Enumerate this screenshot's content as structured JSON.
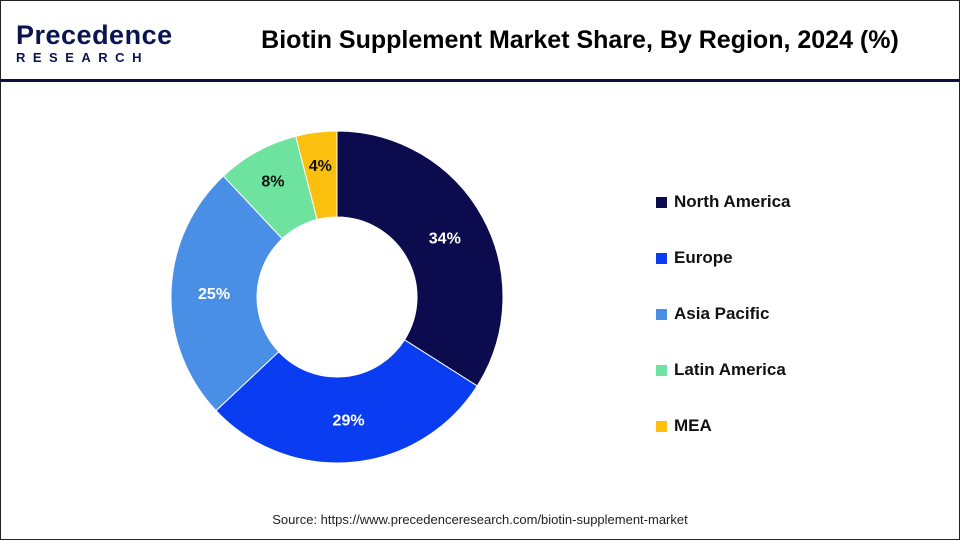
{
  "header": {
    "logo_top": "Precedence",
    "logo_bottom": "RESEARCH",
    "title": "Biotin Supplement Market Share, By Region, 2024 (%)"
  },
  "chart_data": {
    "type": "pie",
    "subtype": "donut",
    "title": "Biotin Supplement Market Share, By Region, 2024 (%)",
    "categories": [
      "North America",
      "Europe",
      "Asia Pacific",
      "Latin America",
      "MEA"
    ],
    "values": [
      34,
      29,
      25,
      8,
      4
    ],
    "labels": [
      "34%",
      "29%",
      "25%",
      "8%",
      "4%"
    ],
    "colors": [
      "#0b0b4d",
      "#0a3df2",
      "#4a8fe6",
      "#6ee39f",
      "#fbc00d"
    ],
    "legend_position": "right"
  },
  "source": "Source: https://www.precedenceresearch.com/biotin-supplement-market"
}
